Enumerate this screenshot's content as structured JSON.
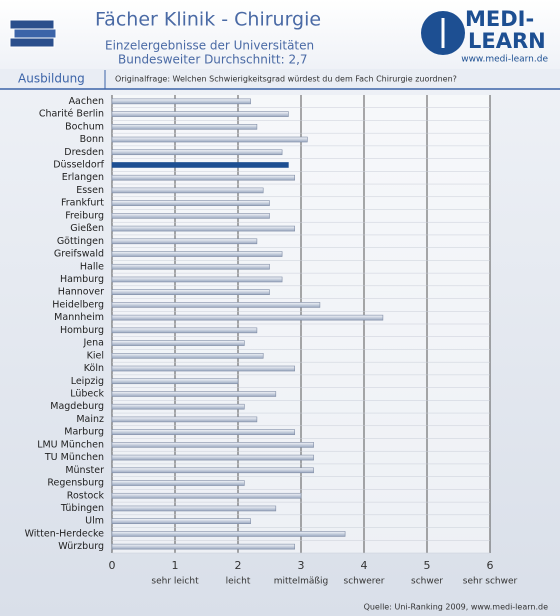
{
  "chart_data": {
    "type": "hbar",
    "title": "Fächer Klinik - Chirurgie",
    "subtitle": [
      "Einzelergebnisse der Universitäten",
      "Bundesweiter Durchschnitt: 2,7"
    ],
    "section": "Ausbildung",
    "question": "Originalfrage: Welchen Schwierigkeitsgrad würdest du dem Fach Chirurgie zuordnen?",
    "logo": [
      "MEDI-",
      "LEARN",
      "www.medi-learn.de"
    ],
    "source": "Quelle: Uni-Ranking 2009, www.medi-learn.de",
    "categories": [
      "Aachen",
      "Charité Berlin",
      "Bochum",
      "Bonn",
      "Dresden",
      "Düsseldorf",
      "Erlangen",
      "Essen",
      "Frankfurt",
      "Freiburg",
      "Gießen",
      "Göttingen",
      "Greifswald",
      "Halle",
      "Hamburg",
      "Hannover",
      "Heidelberg",
      "Mannheim",
      "Homburg",
      "Jena",
      "Kiel",
      "Köln",
      "Leipzig",
      "Lübeck",
      "Magdeburg",
      "Mainz",
      "Marburg",
      "LMU München",
      "TU München",
      "Münster",
      "Regensburg",
      "Rostock",
      "Tübingen",
      "Ulm",
      "Witten-Herdecke",
      "Würzburg"
    ],
    "values": [
      2.2,
      2.8,
      2.3,
      3.1,
      2.7,
      2.8,
      2.9,
      2.4,
      2.5,
      2.5,
      2.9,
      2.3,
      2.7,
      2.5,
      2.7,
      2.5,
      3.3,
      4.3,
      2.3,
      2.1,
      2.4,
      2.9,
      2.0,
      2.6,
      2.1,
      2.3,
      2.9,
      3.2,
      3.2,
      3.2,
      2.1,
      3.0,
      2.6,
      2.2,
      3.7,
      2.9
    ],
    "color": "#c9d3e3",
    "highlight": "Düsseldorf",
    "highlight_color": "#1d4f92",
    "xlim": [
      0,
      6
    ],
    "xticks": [
      0,
      1,
      2,
      3,
      4,
      5,
      6
    ],
    "xtick_descriptions": [
      {
        "value": 1,
        "label": "sehr leicht"
      },
      {
        "value": 2,
        "label": "leicht"
      },
      {
        "value": 3,
        "label": "mittelmäßig"
      },
      {
        "value": 4,
        "label": "schwerer"
      },
      {
        "value": 5,
        "label": "schwer"
      },
      {
        "value": 6,
        "label": "sehr schwer"
      }
    ],
    "grid": true
  }
}
